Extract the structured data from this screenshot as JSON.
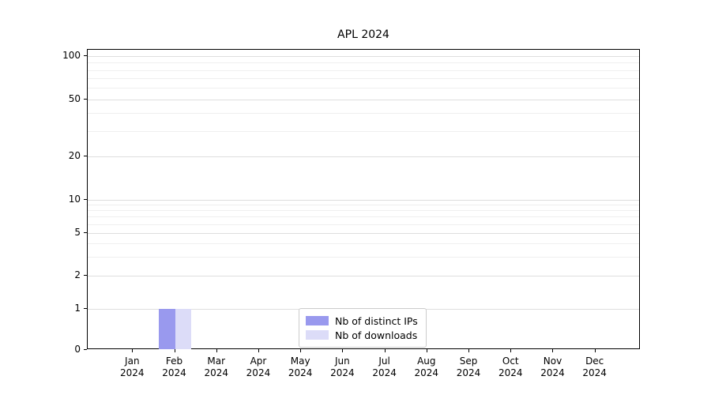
{
  "chart_data": {
    "type": "bar",
    "title": "APL 2024",
    "categories": [
      "Jan 2024",
      "Feb 2024",
      "Mar 2024",
      "Apr 2024",
      "May 2024",
      "Jun 2024",
      "Jul 2024",
      "Aug 2024",
      "Sep 2024",
      "Oct 2024",
      "Nov 2024",
      "Dec 2024"
    ],
    "series": [
      {
        "name": "Nb of distinct IPs",
        "color": "#9999ee",
        "values": [
          0,
          1,
          0,
          0,
          0,
          0,
          0,
          0,
          0,
          0,
          0,
          0
        ]
      },
      {
        "name": "Nb of downloads",
        "color": "#dcdcf8",
        "values": [
          0,
          1,
          0,
          0,
          0,
          0,
          0,
          0,
          0,
          0,
          0,
          0
        ]
      }
    ],
    "yscale": "symlog",
    "yticks": [
      100,
      50,
      20,
      10,
      5,
      2,
      1,
      0
    ],
    "ytick_labels": [
      "100",
      "50",
      "20",
      "10",
      "5",
      "2",
      "1",
      "0"
    ],
    "minor_gridline_values": [
      3,
      4,
      6,
      7,
      8,
      9,
      30,
      40,
      60,
      70,
      80,
      90
    ],
    "ylim": [
      0,
      115
    ],
    "grid": true,
    "legend_position": "lower center"
  }
}
